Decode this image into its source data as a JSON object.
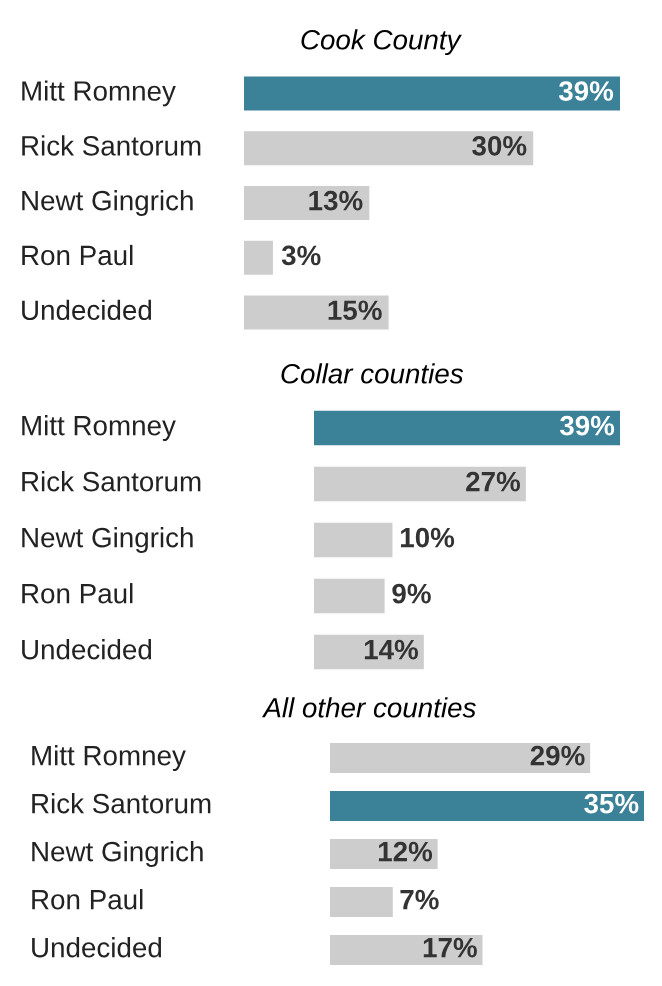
{
  "chart_data": [
    {
      "type": "bar",
      "orientation": "horizontal",
      "title": "Cook County",
      "categories": [
        "Mitt Romney",
        "Rick Santorum",
        "Newt Gingrich",
        "Ron Paul",
        "Undecided"
      ],
      "values": [
        39,
        30,
        13,
        3,
        15
      ],
      "value_labels": [
        "39%",
        "30%",
        "13%",
        "3%",
        "15%"
      ],
      "colors": [
        "#3b8197",
        "#cdcdcd",
        "#cdcdcd",
        "#cdcdcd",
        "#cdcdcd"
      ]
    },
    {
      "type": "bar",
      "orientation": "horizontal",
      "title": "Collar counties",
      "categories": [
        "Mitt Romney",
        "Rick Santorum",
        "Newt Gingrich",
        "Ron Paul",
        "Undecided"
      ],
      "values": [
        39,
        27,
        10,
        9,
        14
      ],
      "value_labels": [
        "39%",
        "27%",
        "10%",
        "9%",
        "14%"
      ],
      "colors": [
        "#3b8197",
        "#cdcdcd",
        "#cdcdcd",
        "#cdcdcd",
        "#cdcdcd"
      ]
    },
    {
      "type": "bar",
      "orientation": "horizontal",
      "title": "All other counties",
      "categories": [
        "Mitt Romney",
        "Rick Santorum",
        "Newt Gingrich",
        "Ron Paul",
        "Undecided"
      ],
      "values": [
        29,
        35,
        12,
        7,
        17
      ],
      "value_labels": [
        "29%",
        "35%",
        "12%",
        "7%",
        "17%"
      ],
      "colors": [
        "#cdcdcd",
        "#3b8197",
        "#cdcdcd",
        "#cdcdcd",
        "#cdcdcd"
      ]
    }
  ]
}
